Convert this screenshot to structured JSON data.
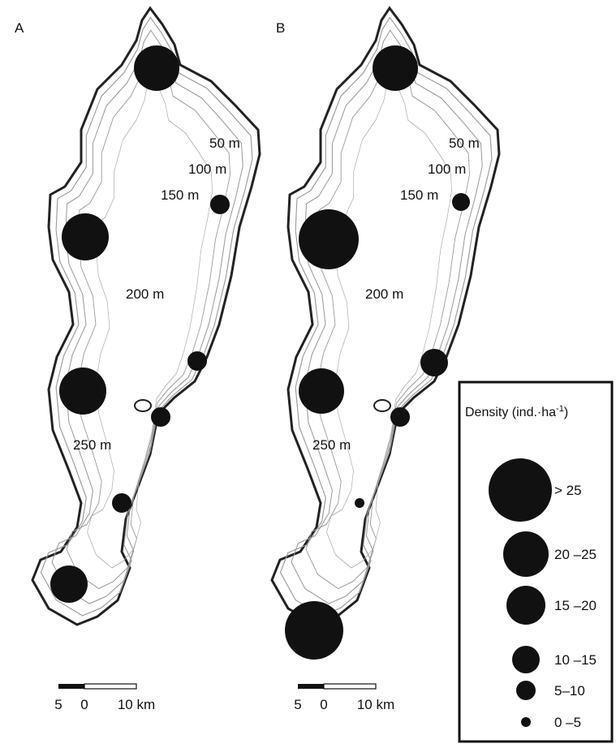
{
  "panels": [
    {
      "label": "A",
      "depths": [
        "50 m",
        "100 m",
        "150 m",
        "200 m",
        "250 m"
      ],
      "scale": [
        "5",
        "0",
        "10 km"
      ]
    },
    {
      "label": "B",
      "depths": [
        "50 m",
        "100 m",
        "150 m",
        "200 m",
        "250 m"
      ],
      "scale": [
        "5",
        "0",
        "10 km"
      ]
    }
  ],
  "legend": {
    "title_main": "Density (ind.·ha",
    "title_sup": "-1",
    "title_end": ")",
    "classes": [
      "> 25",
      "20 –25",
      "15 –20",
      "10 –15",
      "5–10",
      "0 –5"
    ]
  }
}
